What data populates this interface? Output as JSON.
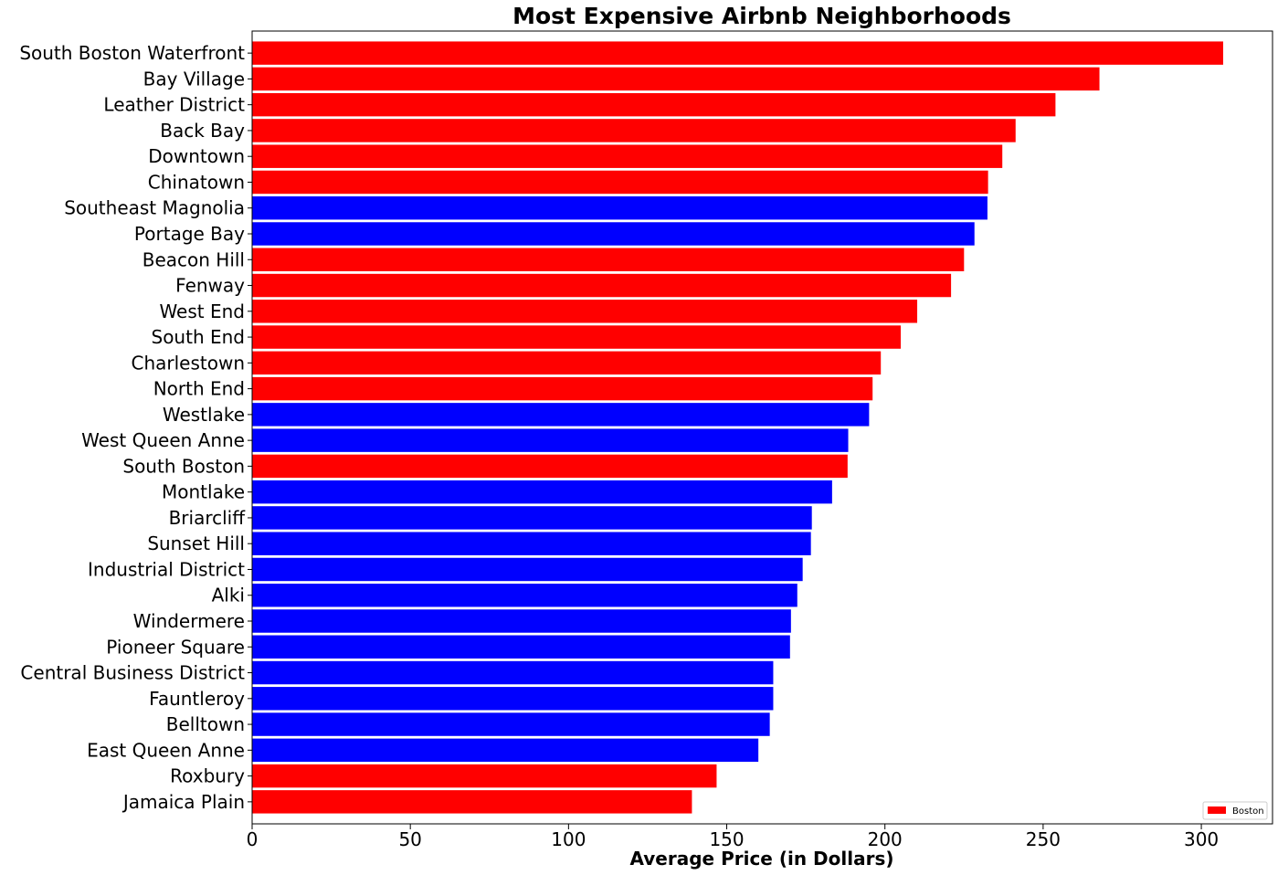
{
  "chart_data": {
    "type": "bar",
    "orientation": "horizontal",
    "title": "Most Expensive Airbnb Neighborhoods",
    "xlabel": "Average Price (in Dollars)",
    "ylabel": "",
    "xlim": [
      0,
      322.5
    ],
    "xticks": [
      0,
      50,
      100,
      150,
      200,
      250,
      300
    ],
    "grid": false,
    "legend": {
      "position": "bottom-right",
      "entries": [
        {
          "label": "Boston",
          "color": "#ff0000"
        }
      ]
    },
    "colors": {
      "boston": "#ff0000",
      "other": "#0000ff"
    },
    "categories": [
      "South Boston Waterfront",
      "Bay Village",
      "Leather District",
      "Back Bay",
      "Downtown",
      "Chinatown",
      "Southeast Magnolia",
      "Portage Bay",
      "Beacon Hill",
      "Fenway",
      "West End",
      "South End",
      "Charlestown",
      "North End",
      "Westlake",
      "West Queen Anne",
      "South Boston",
      "Montlake",
      "Briarcliff",
      "Sunset Hill",
      "Industrial District",
      "Alki",
      "Windermere",
      "Pioneer Square",
      "Central Business District",
      "Fauntleroy",
      "Belltown",
      "East Queen Anne",
      "Roxbury",
      "Jamaica Plain"
    ],
    "values": [
      306.9,
      267.8,
      253.9,
      241.3,
      237.1,
      232.6,
      232.4,
      228.3,
      225.0,
      220.9,
      210.2,
      205.0,
      198.7,
      196.1,
      195.0,
      188.4,
      188.2,
      183.3,
      176.9,
      176.6,
      174.0,
      172.3,
      170.3,
      170.0,
      164.7,
      164.7,
      163.6,
      160.0,
      146.8,
      139.0
    ],
    "bar_colors": [
      "#ff0000",
      "#ff0000",
      "#ff0000",
      "#ff0000",
      "#ff0000",
      "#ff0000",
      "#0000ff",
      "#0000ff",
      "#ff0000",
      "#ff0000",
      "#ff0000",
      "#ff0000",
      "#ff0000",
      "#ff0000",
      "#0000ff",
      "#0000ff",
      "#ff0000",
      "#0000ff",
      "#0000ff",
      "#0000ff",
      "#0000ff",
      "#0000ff",
      "#0000ff",
      "#0000ff",
      "#0000ff",
      "#0000ff",
      "#0000ff",
      "#0000ff",
      "#ff0000",
      "#ff0000"
    ]
  }
}
